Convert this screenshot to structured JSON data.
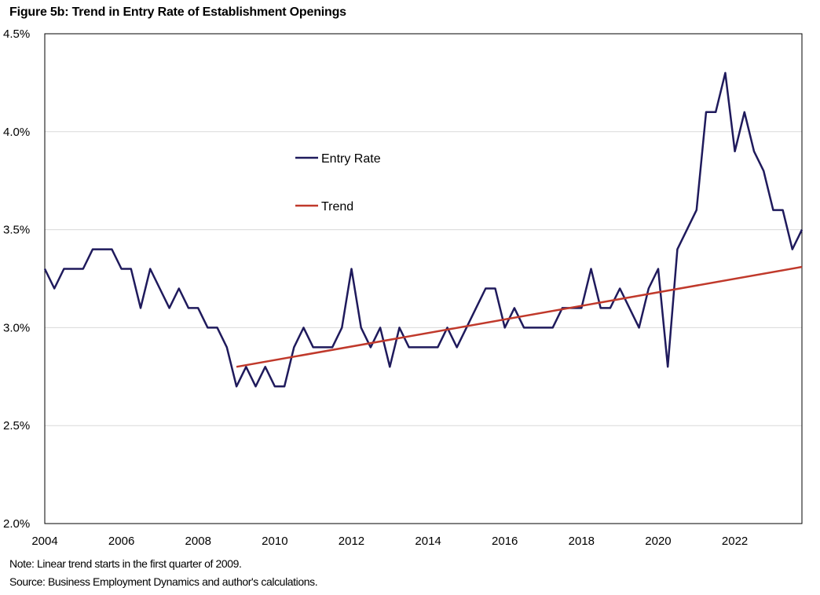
{
  "chart_data": {
    "type": "line",
    "title": "Figure 5b: Trend in Entry Rate of Establishment Openings",
    "xlabel": "",
    "ylabel": "",
    "x_ticks": [
      "2004",
      "2006",
      "2008",
      "2010",
      "2012",
      "2014",
      "2016",
      "2018",
      "2020",
      "2022"
    ],
    "x_tick_values": [
      2004,
      2006,
      2008,
      2010,
      2012,
      2014,
      2016,
      2018,
      2020,
      2022
    ],
    "xlim": [
      2004,
      2023.75
    ],
    "y_ticks": [
      "2.0%",
      "2.5%",
      "3.0%",
      "3.5%",
      "4.0%",
      "4.5%"
    ],
    "y_tick_values": [
      2.0,
      2.5,
      3.0,
      3.5,
      4.0,
      4.5
    ],
    "ylim": [
      2.0,
      4.5
    ],
    "grid": "horizontal",
    "legend_position": "upper-middle",
    "series": [
      {
        "name": "Entry Rate",
        "color": "#1f1a5c",
        "x_start": 2004.0,
        "x_step": 0.25,
        "values": [
          3.3,
          3.2,
          3.3,
          3.3,
          3.3,
          3.4,
          3.4,
          3.4,
          3.3,
          3.3,
          3.1,
          3.3,
          3.2,
          3.1,
          3.2,
          3.1,
          3.1,
          3.0,
          3.0,
          2.9,
          2.7,
          2.8,
          2.7,
          2.8,
          2.7,
          2.7,
          2.9,
          3.0,
          2.9,
          2.9,
          2.9,
          3.0,
          3.3,
          3.0,
          2.9,
          3.0,
          2.8,
          3.0,
          2.9,
          2.9,
          2.9,
          2.9,
          3.0,
          2.9,
          3.0,
          3.1,
          3.2,
          3.2,
          3.0,
          3.1,
          3.0,
          3.0,
          3.0,
          3.0,
          3.1,
          3.1,
          3.1,
          3.3,
          3.1,
          3.1,
          3.2,
          3.1,
          3.0,
          3.2,
          3.3,
          2.8,
          3.4,
          3.5,
          3.6,
          4.1,
          4.1,
          4.3,
          3.9,
          4.1,
          3.9,
          3.8,
          3.6,
          3.6,
          3.4,
          3.5
        ]
      },
      {
        "name": "Trend",
        "color": "#c0392b",
        "x_start": 2009.0,
        "x_end": 2023.75,
        "values": [
          2.8,
          3.31
        ]
      }
    ]
  },
  "notes": {
    "note": "Note: Linear trend starts in the first quarter of 2009.",
    "source": "Source: Business Employment Dynamics and author's calculations."
  }
}
